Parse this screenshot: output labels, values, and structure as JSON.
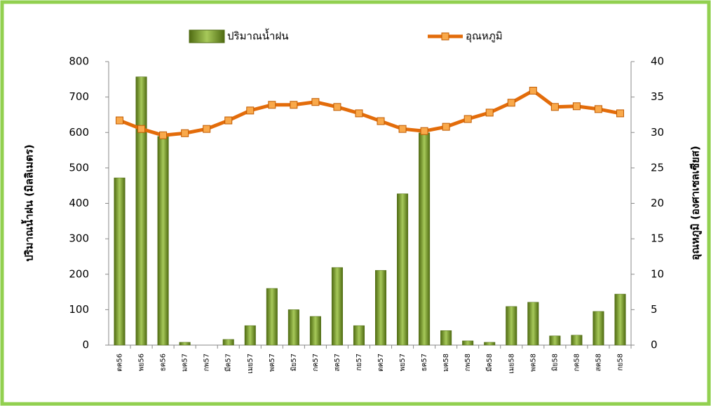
{
  "chart_data": {
    "type": "bar",
    "categories": [
      "ตค56",
      "พย56",
      "ธค56",
      "มค57",
      "กพ57",
      "มีค57",
      "เมย57",
      "พค57",
      "มิย57",
      "กค57",
      "สค57",
      "กย57",
      "ตค57",
      "พย57",
      "ธค57",
      "มค58",
      "กพ58",
      "มีค58",
      "เมย58",
      "พค58",
      "มิย58",
      "กค58",
      "สค58",
      "กย58"
    ],
    "series": [
      {
        "name": "ปริมาณน้ำฝน",
        "type": "bar",
        "axis": "y",
        "color": "#7a9a2a",
        "values": [
          472,
          757,
          589,
          8,
          0,
          16,
          55,
          160,
          100,
          81,
          219,
          55,
          211,
          427,
          599,
          41,
          12,
          8,
          109,
          121,
          26,
          28,
          95,
          144
        ]
      },
      {
        "name": "อุณหภูมิ",
        "type": "line",
        "axis": "y2",
        "color": "#e36c0a",
        "values": [
          31.7,
          30.5,
          29.6,
          29.9,
          30.5,
          31.7,
          33.1,
          33.9,
          33.9,
          34.3,
          33.6,
          32.7,
          31.6,
          30.5,
          30.2,
          30.8,
          31.9,
          32.8,
          34.2,
          35.9,
          33.6,
          33.7,
          33.3,
          32.7
        ]
      }
    ],
    "ylabel": "ปริมาณน้ำฝน (มิลลิเมตร)",
    "y2label": "อุณหภูมิ (องศาเซลเซียส)",
    "ylim": [
      0,
      800
    ],
    "yticks": [
      0,
      100,
      200,
      300,
      400,
      500,
      600,
      700,
      800
    ],
    "y2lim": [
      0,
      40
    ],
    "y2ticks": [
      0,
      5,
      10,
      15,
      20,
      25,
      30,
      35,
      40
    ],
    "legend": "top"
  }
}
